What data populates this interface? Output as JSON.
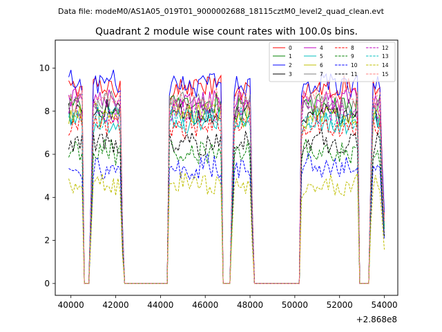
{
  "header": "Data file: modeM0/AS1A05_019T01_9000002688_18115cztM0_level2_quad_clean.evt",
  "chart_data": {
    "type": "line",
    "title": "Quadrant 2 module wise count rates with 100.0s bins.",
    "xlabel": "",
    "ylabel": "",
    "x_offset_label": "+2.868e8",
    "xlim": [
      39300,
      54600
    ],
    "ylim": [
      -0.55,
      11.3
    ],
    "xticks": [
      40000,
      42000,
      44000,
      46000,
      48000,
      50000,
      52000,
      54000
    ],
    "xtick_labels": [
      "40000",
      "42000",
      "44000",
      "46000",
      "48000",
      "50000",
      "52000",
      "54000"
    ],
    "yticks": [
      0,
      2,
      4,
      6,
      8,
      10
    ],
    "ytick_labels": [
      "0",
      "2",
      "4",
      "6",
      "8",
      "10"
    ],
    "x_range": [
      39900,
      54000
    ],
    "x_step": 100,
    "legend_position": "top-right",
    "segments": [
      [
        39900,
        40500,
        1
      ],
      [
        40500,
        40550,
        0.4
      ],
      [
        40600,
        40800,
        0
      ],
      [
        40850,
        40900,
        0.45
      ],
      [
        40900,
        42250,
        1
      ],
      [
        42250,
        42300,
        0.3
      ],
      [
        42300,
        44300,
        0
      ],
      [
        44350,
        44400,
        1
      ],
      [
        44400,
        46700,
        1
      ],
      [
        46700,
        46750,
        0.4
      ],
      [
        46800,
        47100,
        0
      ],
      [
        47150,
        47200,
        0.5
      ],
      [
        47200,
        48050,
        1
      ],
      [
        48050,
        48100,
        0.4
      ],
      [
        48100,
        50200,
        0
      ],
      [
        50250,
        50300,
        1
      ],
      [
        50300,
        52800,
        1
      ],
      [
        52800,
        52850,
        0.35
      ],
      [
        52900,
        53300,
        0
      ],
      [
        53350,
        53400,
        0.6
      ],
      [
        53400,
        53800,
        1
      ],
      [
        53800,
        53900,
        0.6
      ],
      [
        53900,
        54000,
        0.35
      ]
    ],
    "series": [
      {
        "name": "0",
        "color": "#ff0000",
        "dash": "solid",
        "level": 9.1
      },
      {
        "name": "1",
        "color": "#008000",
        "dash": "solid",
        "level": 8.2
      },
      {
        "name": "2",
        "color": "#0000ff",
        "dash": "solid",
        "level": 9.3
      },
      {
        "name": "3",
        "color": "#000000",
        "dash": "solid",
        "level": 7.9
      },
      {
        "name": "4",
        "color": "#bf00bf",
        "dash": "solid",
        "level": 8.5
      },
      {
        "name": "5",
        "color": "#00bfbf",
        "dash": "solid",
        "level": 7.5
      },
      {
        "name": "6",
        "color": "#bfbf00",
        "dash": "solid",
        "level": 7.8
      },
      {
        "name": "7",
        "color": "#7f7f7f",
        "dash": "solid",
        "level": 8.3
      },
      {
        "name": "8",
        "color": "#ff0000",
        "dash": "dashed",
        "level": 7.3
      },
      {
        "name": "9",
        "color": "#008000",
        "dash": "dashed",
        "level": 6.1
      },
      {
        "name": "10",
        "color": "#0000ff",
        "dash": "dashed",
        "level": 5.4
      },
      {
        "name": "11",
        "color": "#000000",
        "dash": "dashed",
        "level": 6.5
      },
      {
        "name": "12",
        "color": "#bf00bf",
        "dash": "dashed",
        "level": 8.0
      },
      {
        "name": "13",
        "color": "#00bfbf",
        "dash": "dashed",
        "level": 7.7
      },
      {
        "name": "14",
        "color": "#bfbf00",
        "dash": "dashed",
        "level": 4.6
      },
      {
        "name": "15",
        "color": "#ff7f7f",
        "dash": "dashed",
        "level": 8.6
      }
    ]
  }
}
